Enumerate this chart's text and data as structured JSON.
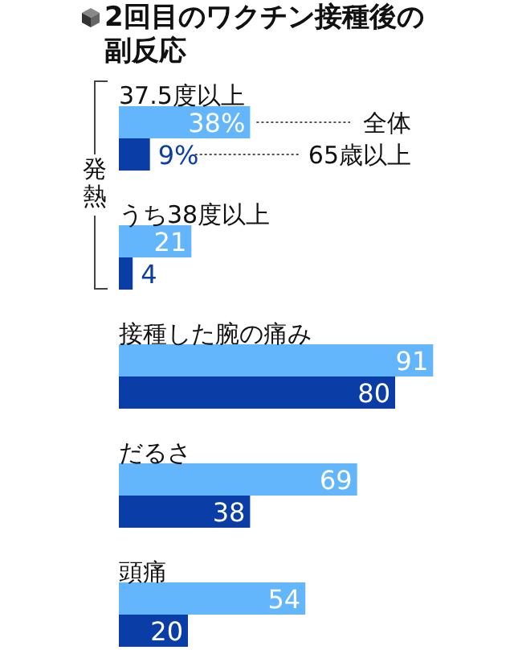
{
  "chart_data": {
    "type": "bar",
    "orientation": "horizontal",
    "title": "2回目のワクチン接種後の副反応",
    "annotations": [
      "発熱"
    ],
    "categories": [
      "37.5度以上",
      "うち38度以上",
      "接種した腕の痛み",
      "だるさ",
      "頭痛"
    ],
    "tick_labels": "y",
    "series": [
      {
        "name": "全体",
        "color": "#63b6fb",
        "values": [
          38,
          21,
          91,
          69,
          54
        ],
        "value_labels": [
          "38%",
          "21",
          "91",
          "69",
          "54"
        ]
      },
      {
        "name": "65歳以上",
        "color": "#0b3da6",
        "values": [
          9,
          4,
          80,
          38,
          20
        ],
        "value_labels": [
          "9%",
          "4",
          "80",
          "38",
          "20"
        ]
      }
    ]
  }
}
